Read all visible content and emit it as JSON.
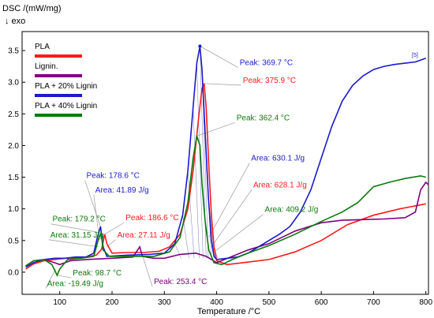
{
  "chart_data": {
    "type": "line",
    "title": "",
    "ylabel": "DSC /(mW/mg)",
    "ylabel_note": "↓ exo",
    "xlabel": "Temperature /°C",
    "xlim": [
      28,
      805
    ],
    "ylim": [
      -0.35,
      3.8
    ],
    "x_ticks": [
      100,
      200,
      300,
      400,
      500,
      600,
      700,
      800
    ],
    "y_ticks": [
      0.0,
      0.5,
      1.0,
      1.5,
      2.0,
      2.5,
      3.0,
      3.5
    ],
    "y_tick_labels": [
      "0.0",
      "0.5",
      "1.0",
      "1.5",
      "2.0",
      "2.5",
      "3.0",
      "3.5"
    ],
    "grid": false,
    "legend_position": "top-left",
    "curve_tag": "[5]",
    "series": [
      {
        "name": "PLA",
        "color": "#ff1a1a",
        "points": [
          [
            35,
            0.05
          ],
          [
            50,
            0.13
          ],
          [
            70,
            0.18
          ],
          [
            90,
            0.2
          ],
          [
            110,
            0.22
          ],
          [
            130,
            0.23
          ],
          [
            150,
            0.24
          ],
          [
            170,
            0.27
          ],
          [
            180,
            0.36
          ],
          [
            186,
            0.6
          ],
          [
            190,
            0.45
          ],
          [
            200,
            0.3
          ],
          [
            230,
            0.31
          ],
          [
            260,
            0.31
          ],
          [
            290,
            0.33
          ],
          [
            310,
            0.4
          ],
          [
            330,
            0.6
          ],
          [
            345,
            1.0
          ],
          [
            355,
            1.6
          ],
          [
            365,
            2.4
          ],
          [
            372,
            2.9
          ],
          [
            376,
            2.98
          ],
          [
            380,
            2.6
          ],
          [
            385,
            1.7
          ],
          [
            390,
            0.9
          ],
          [
            395,
            0.4
          ],
          [
            400,
            0.18
          ],
          [
            420,
            0.12
          ],
          [
            450,
            0.15
          ],
          [
            500,
            0.2
          ],
          [
            550,
            0.32
          ],
          [
            600,
            0.5
          ],
          [
            650,
            0.75
          ],
          [
            700,
            0.9
          ],
          [
            750,
            1.0
          ],
          [
            800,
            1.08
          ]
        ]
      },
      {
        "name": "Lignin.",
        "color": "#800080",
        "points": [
          [
            35,
            0.1
          ],
          [
            50,
            0.18
          ],
          [
            70,
            0.2
          ],
          [
            90,
            0.15
          ],
          [
            100,
            0.12
          ],
          [
            120,
            0.18
          ],
          [
            150,
            0.2
          ],
          [
            200,
            0.22
          ],
          [
            240,
            0.24
          ],
          [
            253,
            0.4
          ],
          [
            258,
            0.25
          ],
          [
            280,
            0.22
          ],
          [
            300,
            0.22
          ],
          [
            330,
            0.28
          ],
          [
            360,
            0.3
          ],
          [
            380,
            0.25
          ],
          [
            400,
            0.15
          ],
          [
            430,
            0.25
          ],
          [
            460,
            0.35
          ],
          [
            500,
            0.45
          ],
          [
            550,
            0.65
          ],
          [
            600,
            0.78
          ],
          [
            640,
            0.82
          ],
          [
            680,
            0.83
          ],
          [
            720,
            0.84
          ],
          [
            760,
            0.86
          ],
          [
            780,
            0.95
          ],
          [
            790,
            1.3
          ],
          [
            800,
            1.42
          ],
          [
            805,
            1.38
          ]
        ]
      },
      {
        "name": "PLA + 20% Lignin",
        "color": "#1a1acc",
        "points": [
          [
            35,
            0.08
          ],
          [
            50,
            0.15
          ],
          [
            70,
            0.2
          ],
          [
            90,
            0.22
          ],
          [
            110,
            0.22
          ],
          [
            130,
            0.24
          ],
          [
            150,
            0.24
          ],
          [
            165,
            0.3
          ],
          [
            172,
            0.55
          ],
          [
            178,
            0.72
          ],
          [
            183,
            0.4
          ],
          [
            190,
            0.25
          ],
          [
            230,
            0.27
          ],
          [
            270,
            0.28
          ],
          [
            300,
            0.3
          ],
          [
            320,
            0.45
          ],
          [
            335,
            0.9
          ],
          [
            345,
            1.6
          ],
          [
            355,
            2.6
          ],
          [
            362,
            3.3
          ],
          [
            368,
            3.57
          ],
          [
            372,
            3.2
          ],
          [
            378,
            2.2
          ],
          [
            384,
            1.2
          ],
          [
            390,
            0.5
          ],
          [
            395,
            0.25
          ],
          [
            400,
            0.2
          ],
          [
            420,
            0.22
          ],
          [
            440,
            0.24
          ],
          [
            460,
            0.3
          ],
          [
            480,
            0.4
          ],
          [
            500,
            0.5
          ],
          [
            520,
            0.6
          ],
          [
            540,
            0.72
          ],
          [
            560,
            0.95
          ],
          [
            580,
            1.3
          ],
          [
            600,
            1.8
          ],
          [
            620,
            2.3
          ],
          [
            640,
            2.7
          ],
          [
            660,
            2.95
          ],
          [
            680,
            3.1
          ],
          [
            700,
            3.2
          ],
          [
            720,
            3.25
          ],
          [
            740,
            3.28
          ],
          [
            760,
            3.3
          ],
          [
            780,
            3.32
          ],
          [
            790,
            3.35
          ],
          [
            800,
            3.38
          ]
        ]
      },
      {
        "name": "PLA + 40% Lignin",
        "color": "#0a7a0a",
        "points": [
          [
            35,
            0.1
          ],
          [
            50,
            0.18
          ],
          [
            70,
            0.2
          ],
          [
            85,
            0.12
          ],
          [
            95,
            -0.05
          ],
          [
            100,
            0.05
          ],
          [
            115,
            0.2
          ],
          [
            140,
            0.22
          ],
          [
            165,
            0.25
          ],
          [
            175,
            0.55
          ],
          [
            179,
            0.62
          ],
          [
            183,
            0.35
          ],
          [
            195,
            0.25
          ],
          [
            230,
            0.25
          ],
          [
            280,
            0.25
          ],
          [
            310,
            0.32
          ],
          [
            330,
            0.55
          ],
          [
            345,
            1.1
          ],
          [
            355,
            1.8
          ],
          [
            362,
            2.15
          ],
          [
            368,
            2.0
          ],
          [
            372,
            1.4
          ],
          [
            378,
            0.8
          ],
          [
            385,
            0.35
          ],
          [
            395,
            0.15
          ],
          [
            410,
            0.12
          ],
          [
            430,
            0.2
          ],
          [
            460,
            0.3
          ],
          [
            500,
            0.42
          ],
          [
            550,
            0.6
          ],
          [
            600,
            0.8
          ],
          [
            640,
            0.95
          ],
          [
            670,
            1.1
          ],
          [
            700,
            1.35
          ],
          [
            730,
            1.42
          ],
          [
            760,
            1.48
          ],
          [
            790,
            1.52
          ],
          [
            800,
            1.5
          ]
        ]
      }
    ],
    "annotations": [
      {
        "text": "Peak: 369.7 °C",
        "color": "#1a1acc",
        "tx": 444,
        "ty": 3.27,
        "ax": 368,
        "ay": 3.57
      },
      {
        "text": "Peak: 375.9 °C",
        "color": "#ff1a1a",
        "tx": 450,
        "ty": 2.99,
        "ax": 376,
        "ay": 2.98
      },
      {
        "text": "Peak: 362.4 °C",
        "color": "#0a7a0a",
        "tx": 438,
        "ty": 2.4,
        "ax": 362,
        "ay": 2.15
      },
      {
        "text": "Area: 630.1 J/g",
        "color": "#1a1acc",
        "tx": 466,
        "ty": 1.76,
        "ax": 385,
        "ay": 0.55
      },
      {
        "text": "Area: 628.1 J/g",
        "color": "#ff1a1a",
        "tx": 470,
        "ty": 1.34,
        "ax": 390,
        "ay": 0.4
      },
      {
        "text": "Area: 409.2 J/g",
        "color": "#0a7a0a",
        "tx": 492,
        "ty": 0.95,
        "ax": 392,
        "ay": 0.3
      },
      {
        "text": "Peak: 178.6 °C",
        "color": "#1a1acc",
        "tx": 151,
        "ty": 1.49,
        "ax": 178,
        "ay": 0.72
      },
      {
        "text": "Area: 41.89 J/g",
        "color": "#1a1acc",
        "tx": 168,
        "ty": 1.26,
        "ax": 176,
        "ay": 0.5
      },
      {
        "text": "Peak: 186.6 °C",
        "color": "#ff1a1a",
        "tx": 226,
        "ty": 0.82,
        "ax": 186,
        "ay": 0.6
      },
      {
        "text": "Peak: 179.2 °C",
        "color": "#0a7a0a",
        "tx": 86,
        "ty": 0.8,
        "ax": 179,
        "ay": 0.62
      },
      {
        "text": "Area: 27.11 J/g",
        "color": "#ff1a1a",
        "tx": 210,
        "ty": 0.55,
        "ax": 190,
        "ay": 0.4
      },
      {
        "text": "Area: 31.15 J/g",
        "color": "#0a7a0a",
        "tx": 82,
        "ty": 0.55,
        "ax": 175,
        "ay": 0.4
      },
      {
        "text": "Peak: 98.7 °C",
        "color": "#0a7a0a",
        "tx": 125,
        "ty": -0.05,
        "ax": 95,
        "ay": -0.05
      },
      {
        "text": "Area: -19.49 J/g",
        "color": "#0a7a0a",
        "tx": 76,
        "ty": -0.22,
        "ax": 92,
        "ay": 0.05
      },
      {
        "text": "Peak: 253.4 °C",
        "color": "#800080",
        "tx": 280,
        "ty": -0.19,
        "ax": 253,
        "ay": 0.4
      }
    ]
  }
}
